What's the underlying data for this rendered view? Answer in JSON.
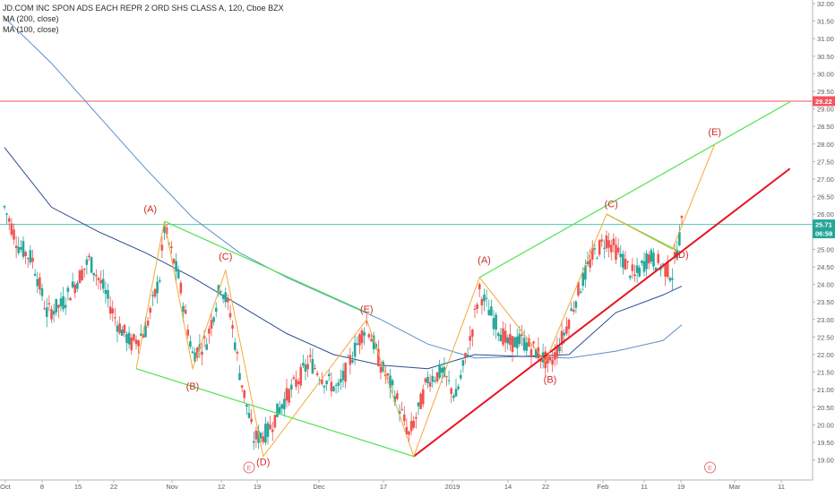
{
  "header": {
    "title": "JD.COM INC SPON ADS EACH REPR 2 ORD SHS CLASS A, 120, Cboe BZX",
    "ma200": "MA (200, close)",
    "ma100": "MA (100, close)"
  },
  "colors": {
    "up": "#26a69a",
    "down": "#ef5350",
    "ma200": "#5b8fc9",
    "ma100": "#2a4d8f",
    "hline_red": "#f7525f",
    "hline_teal": "#4fc4b2",
    "trend_red": "#e8131f",
    "channel_green": "#4ee44e",
    "wave_orange": "#f5a83a",
    "label_red": "#cf2d2d"
  },
  "chart_data": {
    "type": "candlestick",
    "y_axis_ticks": [
      "32.00",
      "31.50",
      "31.00",
      "30.50",
      "30.00",
      "29.50",
      "29.00",
      "28.50",
      "28.00",
      "27.50",
      "27.00",
      "26.50",
      "26.00",
      "25.50",
      "25.00",
      "24.50",
      "24.00",
      "23.50",
      "23.00",
      "22.50",
      "22.00",
      "21.50",
      "21.00",
      "20.50",
      "20.00",
      "19.50",
      "19.00"
    ],
    "x_axis_ticks": [
      "Oct",
      "8",
      "15",
      "22",
      "Nov",
      "12",
      "19",
      "Dec",
      "17",
      "2019",
      "14",
      "22",
      "Feb",
      "11",
      "19",
      "Mar",
      "11"
    ],
    "ylim": [
      18.8,
      32.1
    ],
    "price_badges": [
      {
        "value": "29.22",
        "color": "#f7525f",
        "text_color": "#ffffff"
      },
      {
        "value": "25.71",
        "color": "#26a69a",
        "text_color": "#ffffff"
      },
      {
        "value": "06:59",
        "color": "#26a69a",
        "text_color": "#ffffff"
      }
    ],
    "horizontal_lines": [
      {
        "price": 29.22,
        "color": "#f7525f"
      },
      {
        "price": 25.71,
        "color": "#4fc4b2"
      }
    ],
    "wave_labels": [
      {
        "label": "(A)",
        "day": 31,
        "price": 26.05
      },
      {
        "label": "(B)",
        "day": 40,
        "price": 21.0
      },
      {
        "label": "(C)",
        "day": 47,
        "price": 24.7
      },
      {
        "label": "(D)",
        "day": 55,
        "price": 18.85
      },
      {
        "label": "(E)",
        "day": 77,
        "price": 23.2
      },
      {
        "label": "(A)",
        "day": 102,
        "price": 24.6
      },
      {
        "label": "(B)",
        "day": 116,
        "price": 21.2
      },
      {
        "label": "(C)",
        "day": 129,
        "price": 26.2
      },
      {
        "label": "(D)",
        "day": 144,
        "price": 24.75
      },
      {
        "label": "(E)",
        "day": 151,
        "price": 28.25
      }
    ],
    "event_markers": [
      {
        "label": "E",
        "day": 52
      },
      {
        "label": "E",
        "day": 150
      }
    ],
    "orange_wave_path": [
      {
        "day": 28,
        "price": 21.6
      },
      {
        "day": 34,
        "price": 25.8
      },
      {
        "day": 40,
        "price": 21.6
      },
      {
        "day": 47,
        "price": 24.4
      },
      {
        "day": 55,
        "price": 19.1
      },
      {
        "day": 77,
        "price": 23.0
      },
      {
        "day": 87,
        "price": 19.1
      },
      {
        "day": 101,
        "price": 24.2
      },
      {
        "day": 115,
        "price": 21.8
      },
      {
        "day": 128,
        "price": 26.0
      },
      {
        "day": 142,
        "price": 25.0
      },
      {
        "day": 151,
        "price": 28.0
      }
    ],
    "green_channel_lines": [
      {
        "from": {
          "day": 28,
          "price": 21.6
        },
        "to": {
          "day": 87,
          "price": 19.1
        }
      },
      {
        "from": {
          "day": 34,
          "price": 25.8
        },
        "to": {
          "day": 77,
          "price": 23.2
        }
      },
      {
        "from": {
          "day": 101,
          "price": 24.2
        },
        "to": {
          "day": 167,
          "price": 29.2
        }
      },
      {
        "from": {
          "day": 128,
          "price": 26.0
        },
        "to": {
          "day": 144,
          "price": 24.9
        }
      }
    ],
    "red_trend_line": {
      "from": {
        "day": 87,
        "price": 19.1
      },
      "to": {
        "day": 167,
        "price": 27.3
      }
    },
    "ma200_path": [
      {
        "day": 0,
        "price": 31.6
      },
      {
        "day": 10,
        "price": 30.3
      },
      {
        "day": 20,
        "price": 28.8
      },
      {
        "day": 30,
        "price": 27.3
      },
      {
        "day": 40,
        "price": 25.9
      },
      {
        "day": 50,
        "price": 24.9
      },
      {
        "day": 60,
        "price": 24.2
      },
      {
        "day": 70,
        "price": 23.6
      },
      {
        "day": 80,
        "price": 23.0
      },
      {
        "day": 90,
        "price": 22.3
      },
      {
        "day": 100,
        "price": 21.9
      },
      {
        "day": 110,
        "price": 21.95
      },
      {
        "day": 120,
        "price": 21.9
      },
      {
        "day": 130,
        "price": 22.1
      },
      {
        "day": 140,
        "price": 22.4
      },
      {
        "day": 144,
        "price": 22.85
      }
    ],
    "ma100_path": [
      {
        "day": 0,
        "price": 27.9
      },
      {
        "day": 10,
        "price": 26.2
      },
      {
        "day": 20,
        "price": 25.5
      },
      {
        "day": 30,
        "price": 24.9
      },
      {
        "day": 40,
        "price": 24.2
      },
      {
        "day": 50,
        "price": 23.4
      },
      {
        "day": 60,
        "price": 22.6
      },
      {
        "day": 70,
        "price": 22.0
      },
      {
        "day": 80,
        "price": 21.7
      },
      {
        "day": 90,
        "price": 21.6
      },
      {
        "day": 100,
        "price": 22.0
      },
      {
        "day": 110,
        "price": 21.95
      },
      {
        "day": 120,
        "price": 22.0
      },
      {
        "day": 130,
        "price": 23.2
      },
      {
        "day": 140,
        "price": 23.7
      },
      {
        "day": 144,
        "price": 23.95
      }
    ],
    "price_path": [
      {
        "day": 0,
        "price": 26.2
      },
      {
        "day": 3,
        "price": 25.1
      },
      {
        "day": 6,
        "price": 24.7
      },
      {
        "day": 9,
        "price": 23.2
      },
      {
        "day": 12,
        "price": 23.4
      },
      {
        "day": 15,
        "price": 24.0
      },
      {
        "day": 18,
        "price": 24.7
      },
      {
        "day": 21,
        "price": 23.9
      },
      {
        "day": 24,
        "price": 22.9
      },
      {
        "day": 27,
        "price": 22.3
      },
      {
        "day": 30,
        "price": 22.7
      },
      {
        "day": 33,
        "price": 24.2
      },
      {
        "day": 34,
        "price": 25.6
      },
      {
        "day": 37,
        "price": 24.2
      },
      {
        "day": 40,
        "price": 22.0
      },
      {
        "day": 43,
        "price": 22.4
      },
      {
        "day": 46,
        "price": 24.0
      },
      {
        "day": 48,
        "price": 23.2
      },
      {
        "day": 50,
        "price": 21.5
      },
      {
        "day": 53,
        "price": 19.6
      },
      {
        "day": 56,
        "price": 19.8
      },
      {
        "day": 59,
        "price": 20.6
      },
      {
        "day": 62,
        "price": 21.2
      },
      {
        "day": 65,
        "price": 21.8
      },
      {
        "day": 68,
        "price": 21.3
      },
      {
        "day": 71,
        "price": 21.0
      },
      {
        "day": 74,
        "price": 22.0
      },
      {
        "day": 77,
        "price": 22.9
      },
      {
        "day": 80,
        "price": 21.7
      },
      {
        "day": 83,
        "price": 20.9
      },
      {
        "day": 86,
        "price": 19.7
      },
      {
        "day": 88,
        "price": 20.4
      },
      {
        "day": 90,
        "price": 21.3
      },
      {
        "day": 93,
        "price": 21.5
      },
      {
        "day": 96,
        "price": 20.8
      },
      {
        "day": 99,
        "price": 22.4
      },
      {
        "day": 101,
        "price": 23.8
      },
      {
        "day": 104,
        "price": 23.0
      },
      {
        "day": 107,
        "price": 22.3
      },
      {
        "day": 110,
        "price": 22.4
      },
      {
        "day": 113,
        "price": 22.1
      },
      {
        "day": 116,
        "price": 21.7
      },
      {
        "day": 119,
        "price": 22.6
      },
      {
        "day": 122,
        "price": 23.8
      },
      {
        "day": 125,
        "price": 24.8
      },
      {
        "day": 128,
        "price": 25.3
      },
      {
        "day": 131,
        "price": 24.8
      },
      {
        "day": 134,
        "price": 24.2
      },
      {
        "day": 137,
        "price": 24.8
      },
      {
        "day": 140,
        "price": 24.5
      },
      {
        "day": 142,
        "price": 24.3
      },
      {
        "day": 143,
        "price": 25.0
      },
      {
        "day": 144,
        "price": 25.7
      }
    ]
  }
}
